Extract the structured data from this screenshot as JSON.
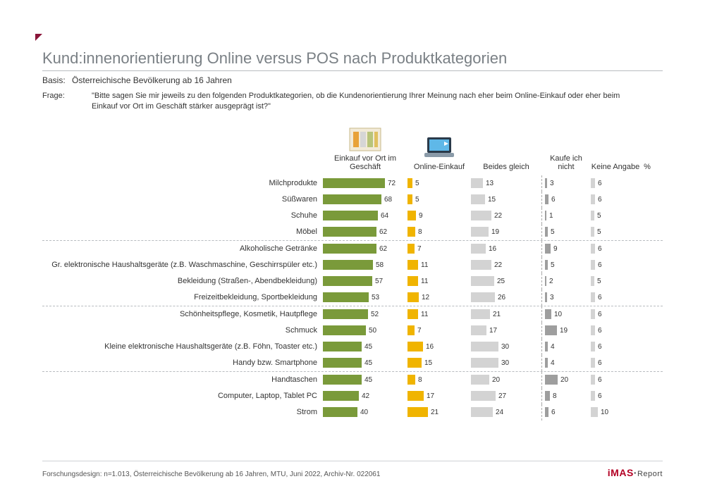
{
  "title": "Kund:innenorientierung Online versus POS nach Produktkategorien",
  "basis_label": "Basis:",
  "basis_text": "Österreichische Bevölkerung ab 16 Jahren",
  "question_label": "Frage:",
  "question_text": "\"Bitte sagen Sie mir jeweils zu den folgenden Produktkategorien, ob die Kundenorientierung Ihrer Meinung nach eher beim Online-Einkauf oder eher beim Einkauf vor Ort im Geschäft stärker ausgeprägt ist?\"",
  "columns": {
    "c1": "Einkauf vor Ort im Geschäft",
    "c2": "Online-Einkauf",
    "c3": "Beides gleich",
    "c4": "Kaufe ich nicht",
    "c5": "Keine Angabe",
    "pct": "%"
  },
  "colors": {
    "c1": "#7a9a3a",
    "c2": "#f0b400",
    "c3": "#d3d3d3",
    "c4": "#9e9e9e",
    "c5": "#d3d3d3",
    "title": "#7a8085",
    "accent": "#8a1539",
    "text": "#333333",
    "divider": "#b8bcc0"
  },
  "scales": {
    "c1_max": 80,
    "c2_max": 50,
    "c3_max": 60,
    "c4_max": 50,
    "c5_max": 50
  },
  "rows": [
    {
      "label": "Milchprodukte",
      "v": [
        72,
        5,
        13,
        3,
        6
      ],
      "sep": false
    },
    {
      "label": "Süßwaren",
      "v": [
        68,
        5,
        15,
        6,
        6
      ],
      "sep": false
    },
    {
      "label": "Schuhe",
      "v": [
        64,
        9,
        22,
        1,
        5
      ],
      "sep": false
    },
    {
      "label": "Möbel",
      "v": [
        62,
        8,
        19,
        5,
        5
      ],
      "sep": true
    },
    {
      "label": "Alkoholische Getränke",
      "v": [
        62,
        7,
        16,
        9,
        6
      ],
      "sep": false
    },
    {
      "label": "Gr. elektronische Haushaltsgeräte (z.B. Waschmaschine, Geschirrspüler etc.)",
      "v": [
        58,
        11,
        22,
        5,
        6
      ],
      "sep": false
    },
    {
      "label": "Bekleidung (Straßen-, Abendbekleidung)",
      "v": [
        57,
        11,
        25,
        2,
        5
      ],
      "sep": false
    },
    {
      "label": "Freizeitbekleidung, Sportbekleidung",
      "v": [
        53,
        12,
        26,
        3,
        6
      ],
      "sep": true
    },
    {
      "label": "Schönheitspflege, Kosmetik, Hautpflege",
      "v": [
        52,
        11,
        21,
        10,
        6
      ],
      "sep": false
    },
    {
      "label": "Schmuck",
      "v": [
        50,
        7,
        17,
        19,
        6
      ],
      "sep": false
    },
    {
      "label": "Kleine elektronische Haushaltsgeräte (z.B. Föhn, Toaster etc.)",
      "v": [
        45,
        16,
        30,
        4,
        6
      ],
      "sep": false
    },
    {
      "label": "Handy bzw. Smartphone",
      "v": [
        45,
        15,
        30,
        4,
        6
      ],
      "sep": true
    },
    {
      "label": "Handtaschen",
      "v": [
        45,
        8,
        20,
        20,
        6
      ],
      "sep": false
    },
    {
      "label": "Computer, Laptop, Tablet PC",
      "v": [
        42,
        17,
        27,
        8,
        6
      ],
      "sep": false
    },
    {
      "label": "Strom",
      "v": [
        40,
        21,
        24,
        6,
        10
      ],
      "sep": false
    }
  ],
  "footer": "Forschungsdesign: n=1.013, Österreichische Bevölkerung ab 16 Jahren, MTU, Juni 2022, Archiv-Nr. 022061",
  "logo": {
    "brand": "iMAS",
    "suffix": "Report"
  }
}
